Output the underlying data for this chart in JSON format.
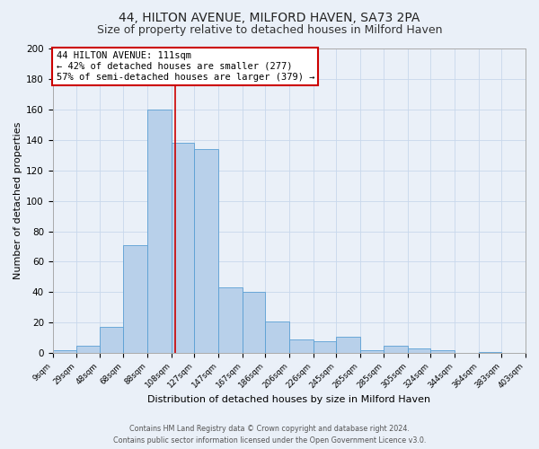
{
  "title": "44, HILTON AVENUE, MILFORD HAVEN, SA73 2PA",
  "subtitle": "Size of property relative to detached houses in Milford Haven",
  "xlabel": "Distribution of detached houses by size in Milford Haven",
  "ylabel": "Number of detached properties",
  "bin_labels": [
    "9sqm",
    "29sqm",
    "48sqm",
    "68sqm",
    "88sqm",
    "108sqm",
    "127sqm",
    "147sqm",
    "167sqm",
    "186sqm",
    "206sqm",
    "226sqm",
    "245sqm",
    "265sqm",
    "285sqm",
    "305sqm",
    "324sqm",
    "344sqm",
    "364sqm",
    "383sqm",
    "403sqm"
  ],
  "bar_heights": [
    2,
    5,
    17,
    71,
    160,
    138,
    134,
    43,
    40,
    21,
    9,
    8,
    11,
    2,
    5,
    3,
    2,
    0,
    1,
    0
  ],
  "bin_edges": [
    9,
    29,
    48,
    68,
    88,
    108,
    127,
    147,
    167,
    186,
    206,
    226,
    245,
    265,
    285,
    305,
    324,
    344,
    364,
    383,
    403
  ],
  "bar_color": "#b8d0ea",
  "bar_edge_color": "#5a9fd4",
  "property_size": 111,
  "vline_color": "#cc0000",
  "annotation_text": "44 HILTON AVENUE: 111sqm\n← 42% of detached houses are smaller (277)\n57% of semi-detached houses are larger (379) →",
  "annotation_box_color": "#ffffff",
  "annotation_box_edge_color": "#cc0000",
  "ylim": [
    0,
    200
  ],
  "yticks": [
    0,
    20,
    40,
    60,
    80,
    100,
    120,
    140,
    160,
    180,
    200
  ],
  "footer_line1": "Contains HM Land Registry data © Crown copyright and database right 2024.",
  "footer_line2": "Contains public sector information licensed under the Open Government Licence v3.0.",
  "bg_color": "#eaf0f8",
  "plot_bg_color": "#eaf0f8",
  "title_fontsize": 10,
  "subtitle_fontsize": 9
}
